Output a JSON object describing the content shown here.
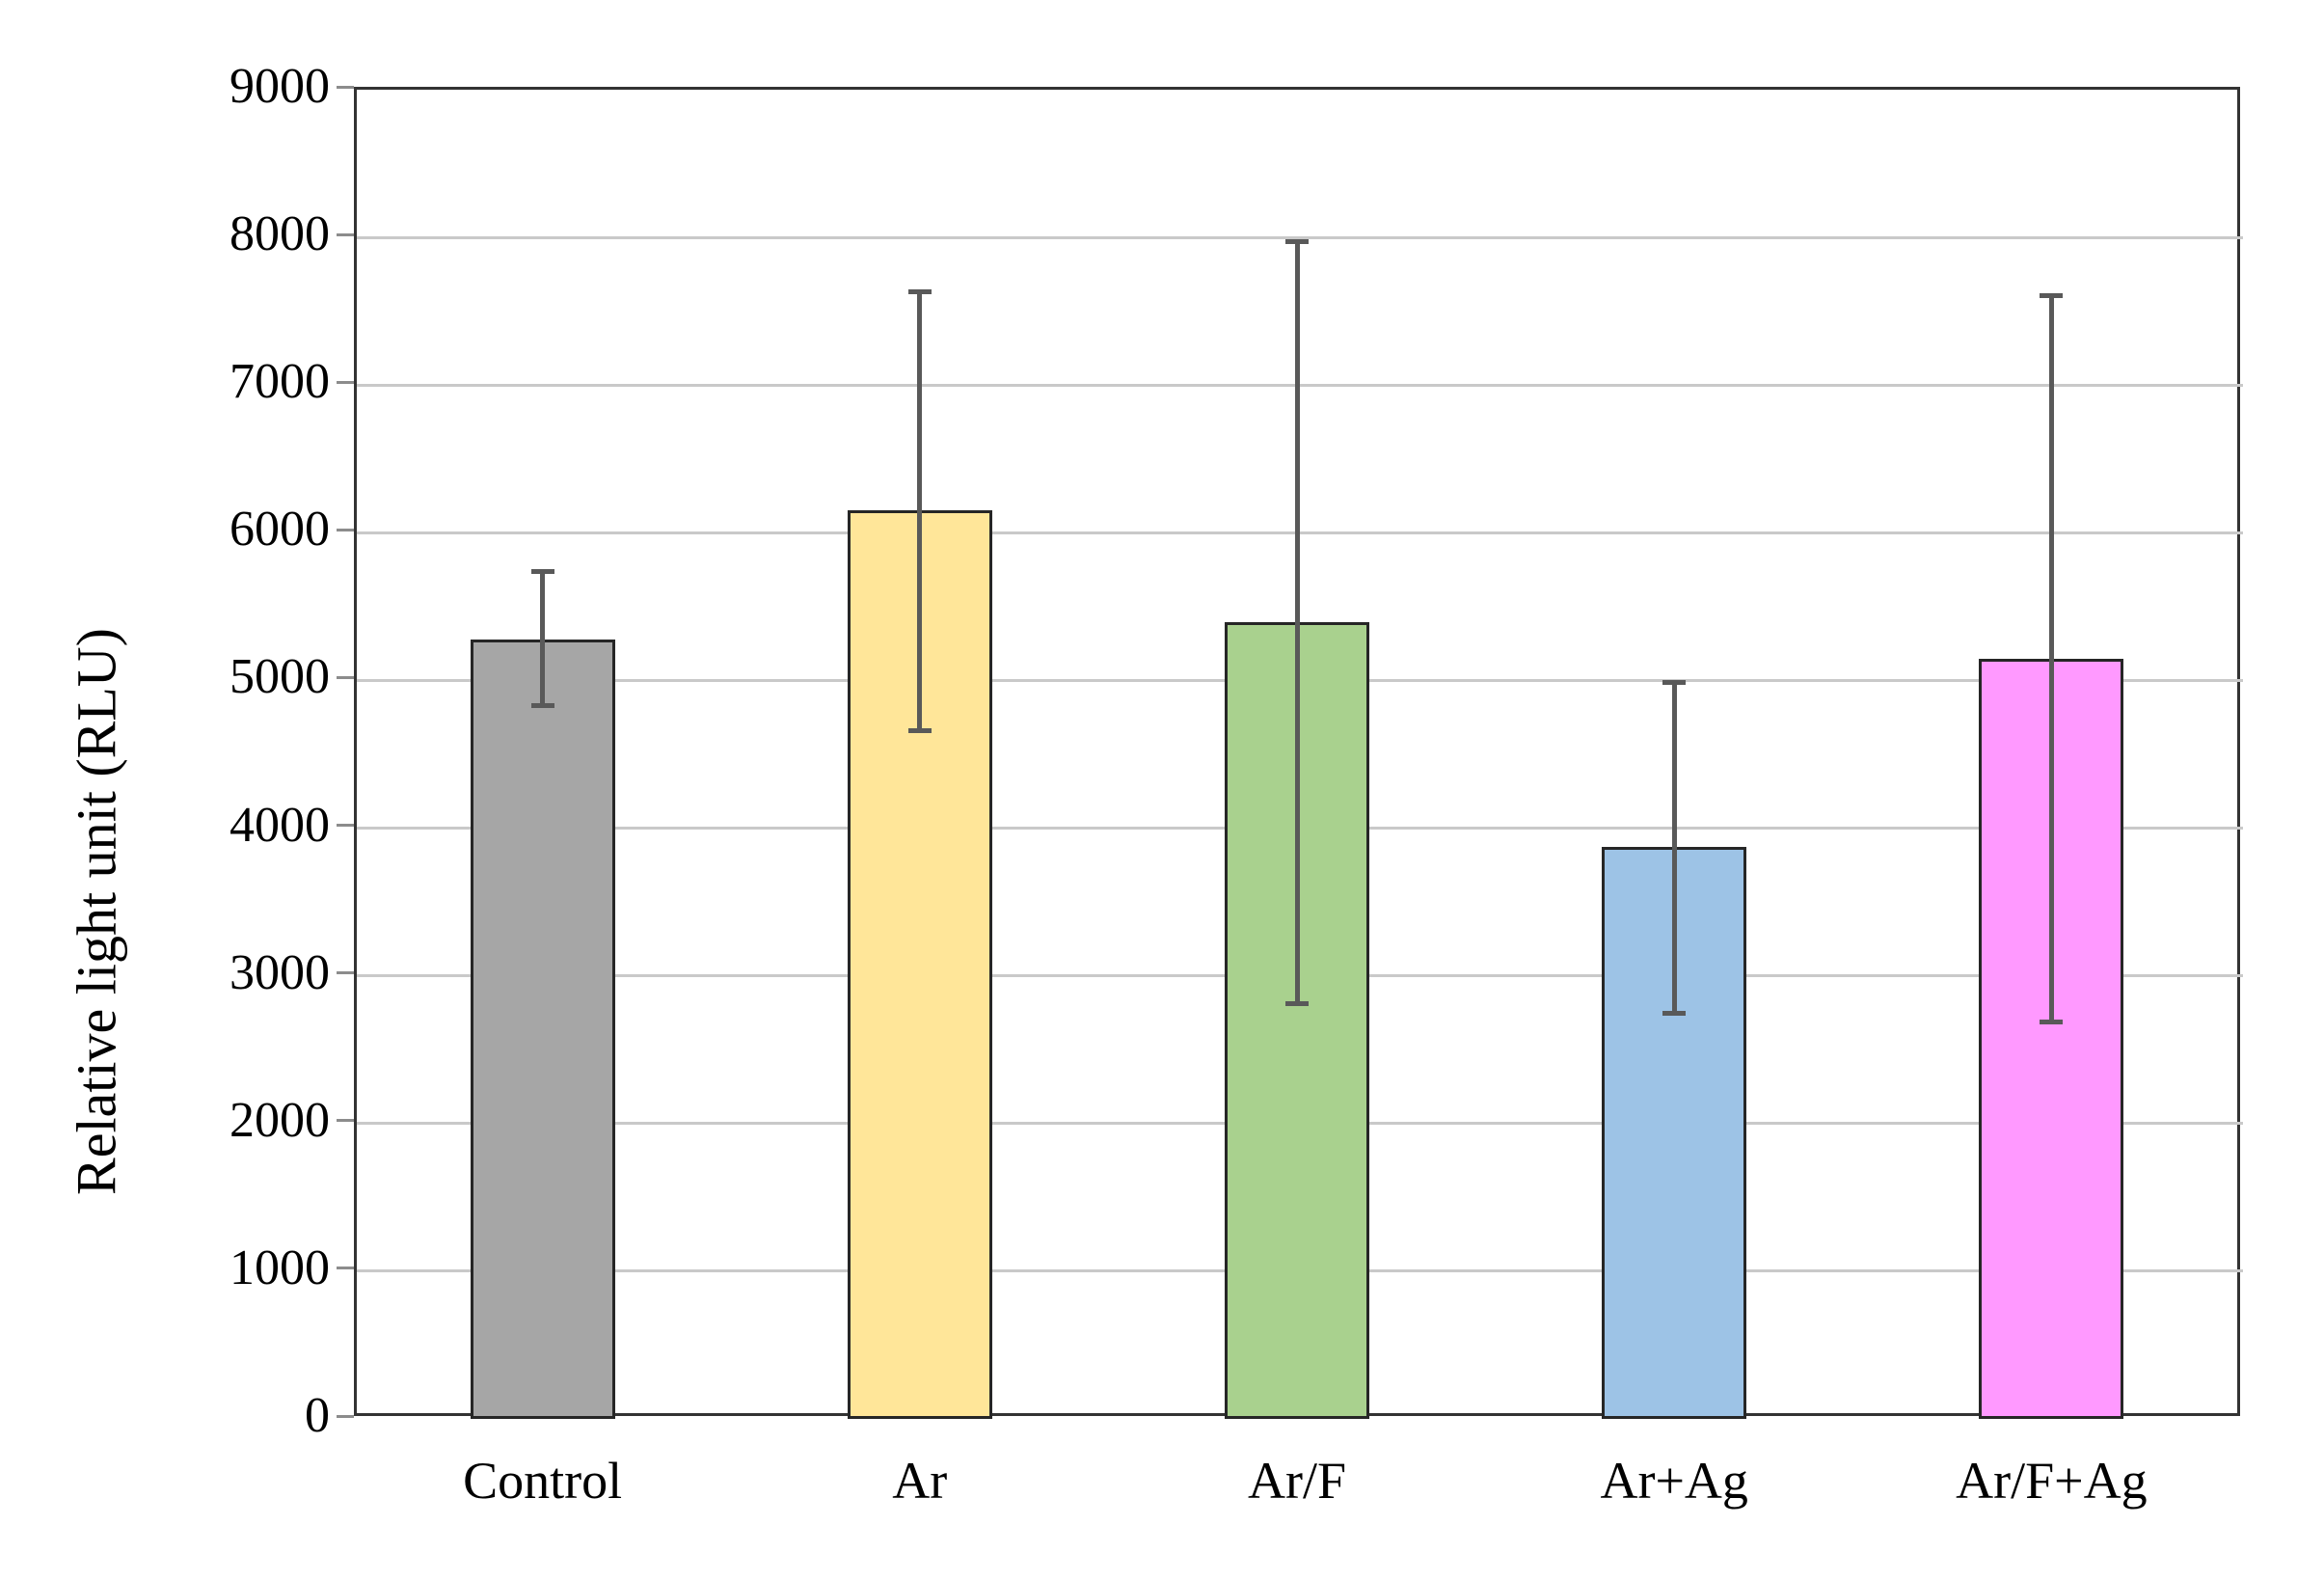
{
  "chart_data": {
    "type": "bar",
    "title": "",
    "xlabel": "",
    "ylabel": "Relative light unit (RLU)",
    "categories": [
      "Control",
      "Ar",
      "Ar/F",
      "Ar+Ag",
      "Ar/F+Ag"
    ],
    "values": [
      5260,
      6130,
      5375,
      3855,
      5130
    ],
    "error_upper": [
      5715,
      7615,
      7955,
      4970,
      7585
    ],
    "error_lower": [
      4810,
      4640,
      2795,
      2725,
      2665
    ],
    "bar_colors": [
      "#A6A6A6",
      "#FFE699",
      "#A9D18E",
      "#9DC3E6",
      "#FF99FF"
    ],
    "ylim": [
      0,
      9000
    ],
    "ytick_step": 1000,
    "ytick_labels": [
      "0",
      "1000",
      "2000",
      "3000",
      "4000",
      "5000",
      "6000",
      "7000",
      "8000",
      "9000"
    ],
    "grid": true,
    "legend": "none",
    "styles": {
      "bar_border_color": "#262626",
      "error_bar_color": "#595959",
      "gridline_color": "#C9C9C9",
      "frame_color": "#333333",
      "tick_color": "#8C8C8C",
      "text_color": "#000000",
      "background_color": "#FFFFFF"
    }
  }
}
